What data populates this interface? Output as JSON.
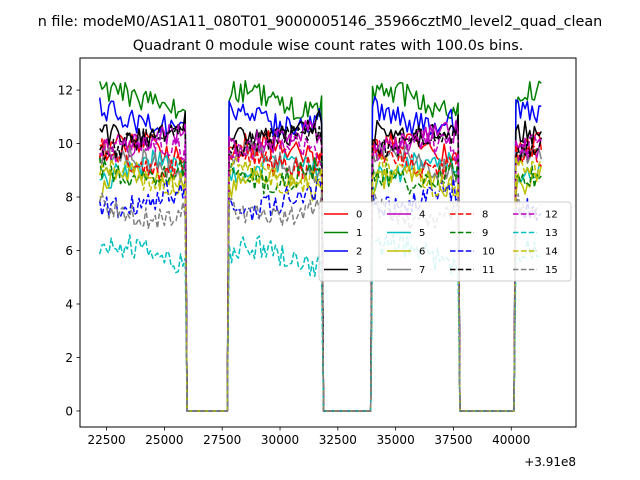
{
  "figure": {
    "suptitle": "n file: modeM0/AS1A11_080T01_9000005146_35966cztM0_level2_quad_clean",
    "title": "Quadrant 0 module wise count rates with 100.0s bins.",
    "offset_label": "+3.91e8"
  },
  "chart_data": {
    "type": "line",
    "title": "Quadrant 0 module wise count rates with 100.0s bins.",
    "xlabel": "",
    "ylabel": "",
    "x_offset": 391000000,
    "xlim": [
      21350,
      42800
    ],
    "ylim": [
      -0.6,
      13.2
    ],
    "xticks": [
      22500,
      25000,
      27500,
      30000,
      32500,
      35000,
      37500,
      40000
    ],
    "xtick_labels": [
      "22500",
      "25000",
      "27500",
      "30000",
      "32500",
      "35000",
      "37500",
      "40000"
    ],
    "yticks": [
      0,
      2,
      4,
      6,
      8,
      10,
      12
    ],
    "ytick_labels": [
      "0",
      "2",
      "4",
      "6",
      "8",
      "10",
      "12"
    ],
    "grid": false,
    "legend": {
      "placement": "center-right",
      "ncol": 4
    },
    "segments": [
      {
        "start": 22200,
        "end": 25900
      },
      {
        "start": 27800,
        "end": 31800
      },
      {
        "start": 34000,
        "end": 37700
      },
      {
        "start": 40200,
        "end": 41300
      }
    ],
    "gaps_value": 0,
    "series": [
      {
        "name": "0",
        "color": "#ff0000",
        "dash": false,
        "level": 9.7
      },
      {
        "name": "1",
        "color": "#008000",
        "dash": false,
        "level": 11.6
      },
      {
        "name": "2",
        "color": "#0000ff",
        "dash": false,
        "level": 11.0
      },
      {
        "name": "3",
        "color": "#000000",
        "dash": false,
        "level": 10.5
      },
      {
        "name": "4",
        "color": "#bf00bf",
        "dash": false,
        "level": 10.1
      },
      {
        "name": "5",
        "color": "#00bfbf",
        "dash": false,
        "level": 9.0
      },
      {
        "name": "6",
        "color": "#bfbf00",
        "dash": false,
        "level": 8.5
      },
      {
        "name": "7",
        "color": "#808080",
        "dash": false,
        "level": 9.3
      },
      {
        "name": "8",
        "color": "#ff0000",
        "dash": true,
        "level": 9.4
      },
      {
        "name": "9",
        "color": "#008000",
        "dash": true,
        "level": 8.9
      },
      {
        "name": "10",
        "color": "#0000ff",
        "dash": true,
        "level": 7.9
      },
      {
        "name": "11",
        "color": "#000000",
        "dash": true,
        "level": 10.1
      },
      {
        "name": "12",
        "color": "#bf00bf",
        "dash": true,
        "level": 9.8
      },
      {
        "name": "13",
        "color": "#00bfbf",
        "dash": true,
        "level": 5.8
      },
      {
        "name": "14",
        "color": "#bfbf00",
        "dash": true,
        "level": 8.8
      },
      {
        "name": "15",
        "color": "#808080",
        "dash": true,
        "level": 7.5
      }
    ]
  }
}
